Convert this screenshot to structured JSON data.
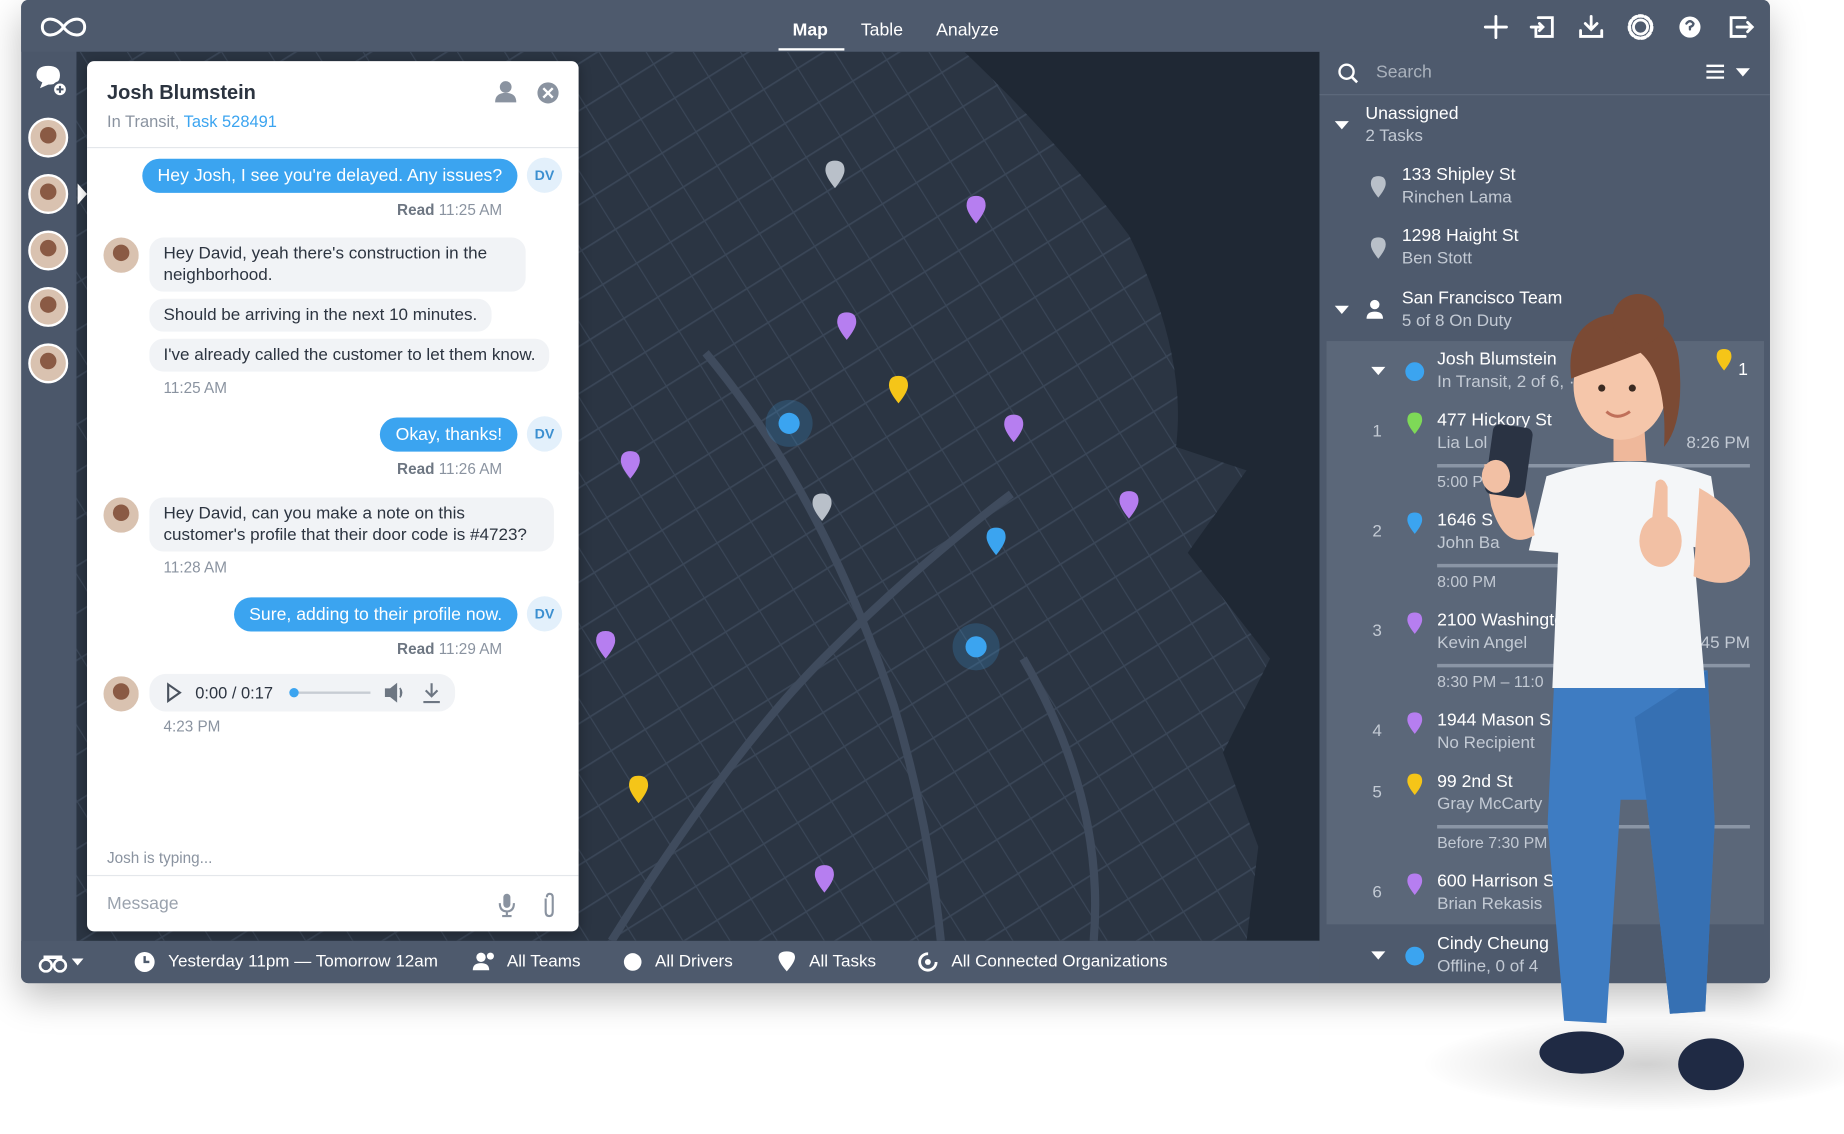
{
  "nav": {
    "tabs": [
      "Map",
      "Table",
      "Analyze"
    ]
  },
  "chat": {
    "name": "Josh Blumstein",
    "status": "In Transit, ",
    "task": "Task 528491",
    "me_initials": "DV",
    "messages": [
      {
        "side": "out",
        "text": "Hey Josh, I see you're delayed. Any issues?",
        "status": "Read",
        "time": "11:25 AM"
      },
      {
        "side": "in",
        "bubbles": [
          "Hey David, yeah there's construction in the neighborhood.",
          "Should be arriving in the next 10 minutes.",
          "I've already called the customer to let them know."
        ],
        "time": "11:25 AM"
      },
      {
        "side": "out",
        "text": "Okay, thanks!",
        "status": "Read",
        "time": "11:26 AM"
      },
      {
        "side": "in",
        "bubbles": [
          "Hey David, can you make a note on this customer's profile that their door code is #4723?"
        ],
        "time": "11:28 AM"
      },
      {
        "side": "out",
        "text": "Sure, adding to their profile now.",
        "status": "Read",
        "time": "11:29 AM"
      }
    ],
    "audio": {
      "progress": "0:00 / 0:17",
      "time": "4:23 PM"
    },
    "typing": "Josh is typing...",
    "placeholder": "Message"
  },
  "sidebar": {
    "search": "Search",
    "unassigned": {
      "title": "Unassigned",
      "subtitle": "2 Tasks",
      "tasks": [
        {
          "address": "133 Shipley St",
          "recipient": "Rinchen Lama"
        },
        {
          "address": "1298 Haight St",
          "recipient": "Ben Stott"
        }
      ]
    },
    "team": {
      "title": "San Francisco Team",
      "subtitle": "5 of 8 On Duty"
    },
    "drivers": [
      {
        "name": "Josh Blumstein",
        "status": "In Transit, 2 of 6, ·",
        "count": "1",
        "tasks": [
          {
            "number": "1",
            "address": "477 Hickory St",
            "recipient": "Lia Lol",
            "eta": "8:26 PM",
            "window": "5:00 P",
            "color": "#7ed957"
          },
          {
            "number": "2",
            "address": "1646 S",
            "recipient": "John Ba",
            "window": "8:00 PM",
            "color": "#3ba4f0"
          },
          {
            "number": "3",
            "address": "2100 Washingto",
            "recipient": "Kevin Angel",
            "eta": "45 PM",
            "window": "8:30 PM – 11:0",
            "color": "#b67ef0"
          },
          {
            "number": "4",
            "address": "1944 Mason S",
            "recipient": "No Recipient",
            "color": "#b67ef0"
          },
          {
            "number": "5",
            "address": "99 2nd St",
            "recipient": "Gray McCarty",
            "window": "Before 7:30 PM",
            "color": "#f5c518"
          },
          {
            "number": "6",
            "address": "600 Harrison S",
            "recipient": "Brian Rekasis",
            "color": "#b67ef0"
          }
        ]
      },
      {
        "name": "Cindy Cheung",
        "status": "Offline, 0 of 4"
      }
    ]
  },
  "footer": {
    "time_range": "Yesterday 11pm — Tomorrow 12am",
    "teams": "All Teams",
    "drivers": "All Drivers",
    "tasks": "All Tasks",
    "organizations": "All Connected Organizations"
  }
}
